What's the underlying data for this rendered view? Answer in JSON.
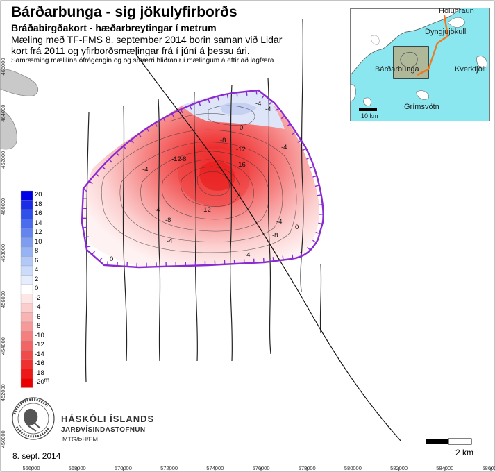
{
  "title": "Bárðarbunga - sig jökulyfirborðs",
  "subtitle": "Bráðabirgðakort - hæðarbreytingar í metrum",
  "description_line1": "Mæling með TF-FMS 8. september 2014 borin saman við Lidar",
  "description_line2": "kort frá 2011 og yfirborðsmælingar frá í júní á þessu ári.",
  "note": "Samræming mælilína ófrágengin og og smærri hliðranir í mælingum á eftir að lagfæra",
  "date": "8. sept. 2014",
  "scale_label": "2 km",
  "university": {
    "name": "HÁSKÓLI ÍSLANDS",
    "department": "JARÐVÍSINDASTOFNUN",
    "credit": "MTG/ÞH/EM"
  },
  "legend": {
    "unit": "m",
    "labels": [
      "20",
      "18",
      "16",
      "14",
      "12",
      "10",
      "8",
      "6",
      "4",
      "2",
      "0",
      "-2",
      "-4",
      "-6",
      "-8",
      "-10",
      "-12",
      "-14",
      "-16",
      "-18",
      "-20"
    ],
    "colors": [
      "#0000e6",
      "#1a2ee8",
      "#3050ea",
      "#4a6ced",
      "#6485ef",
      "#7e9df1",
      "#98b3f4",
      "#b2c8f6",
      "#cbdbf9",
      "#e6edfc",
      "#ffffff",
      "#fde6e6",
      "#fbcdcd",
      "#f9b3b3",
      "#f79999",
      "#f57f7f",
      "#f36464",
      "#f14a4a",
      "#ef3030",
      "#ed1818",
      "#eb0000"
    ]
  },
  "x_ticks": [
    "566000",
    "568000",
    "570000",
    "572000",
    "574000",
    "576000",
    "578000",
    "580000",
    "582000",
    "584000",
    "586000"
  ],
  "y_ticks": [
    "466000",
    "464000",
    "462000",
    "460000",
    "458000",
    "456000",
    "454000",
    "452000",
    "450000"
  ],
  "contour_labels": [
    "-4",
    "-4",
    "0",
    "-8",
    "-12",
    "-16",
    "-4",
    "-12",
    "-8",
    "-8",
    "-12",
    "-4",
    "-8",
    "-4",
    "-4",
    "0",
    "-4",
    "0",
    "-4"
  ],
  "inset": {
    "labels": {
      "holuhraun": "Holuhraun",
      "dyngjujokull": "Dyngjujökull",
      "bardarbunga": "Bárðarbunga",
      "kverkfjoll": "Kverkfjöll",
      "grimsvotn": "Grímsvötn",
      "scale": "10 km"
    },
    "colors": {
      "ice": "#8ae6ef",
      "route": "#f07820",
      "area_box": "#b0b89a"
    }
  },
  "colors": {
    "boundary": "#8a2bd0",
    "flightline": "#222222"
  }
}
